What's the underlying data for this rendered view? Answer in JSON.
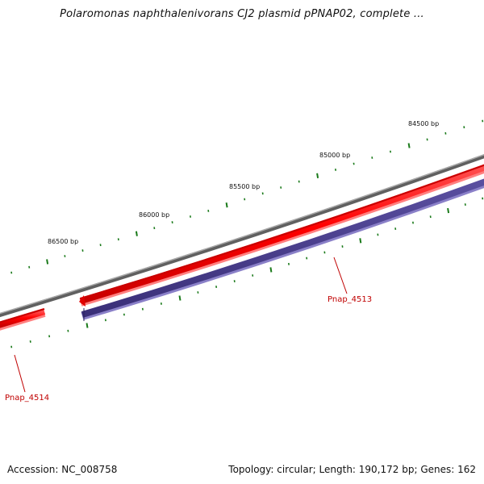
{
  "title": "Polaromonas naphthalenivorans CJ2 plasmid pPNAP02, complete ...",
  "footer": {
    "accession": "Accession: NC_008758",
    "summary": "Topology: circular; Length: 190,172 bp; Genes: 162"
  },
  "ruler": {
    "labels": [
      "84500 bp",
      "85000 bp",
      "85500 bp",
      "86000 bp",
      "86500 bp"
    ]
  },
  "genes": [
    {
      "name": "Pnap_4513",
      "strand": "forward",
      "color": "#ff0000"
    },
    {
      "name": "Pnap_4514",
      "strand": "forward",
      "color": "#ff0000"
    }
  ],
  "colors": {
    "backbone": "#808080",
    "forward_gene": "#ff0000",
    "reverse_gene": "#473c8b",
    "ticks": "#1a7a1a",
    "gene_label": "#c00000"
  }
}
